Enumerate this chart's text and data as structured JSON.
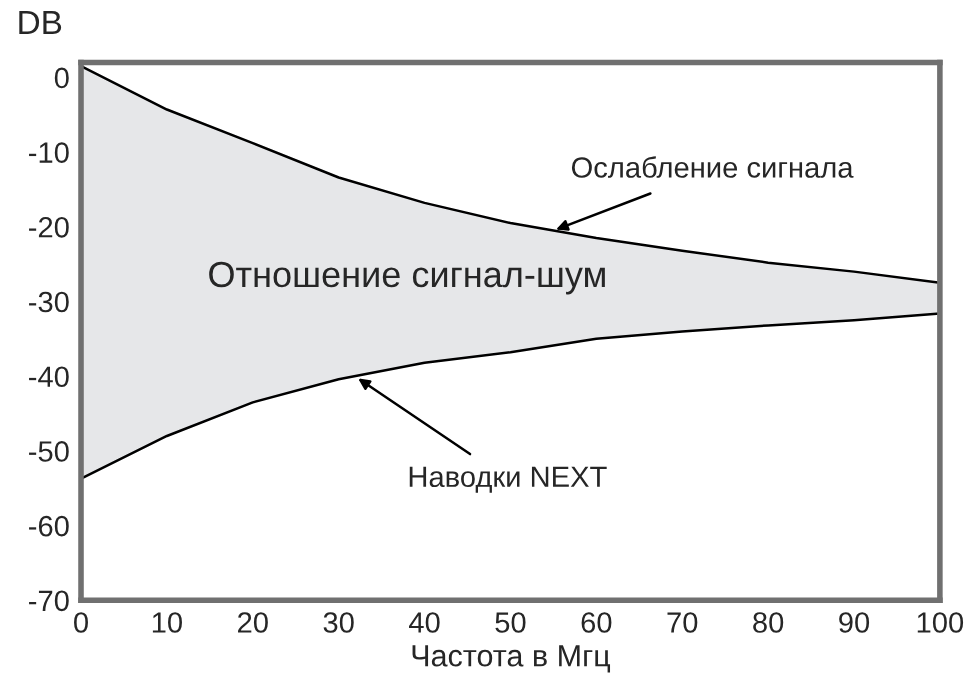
{
  "chart_data": {
    "type": "line",
    "ylabel": "DB",
    "xlabel": "Частота в Мгц",
    "x": [
      0,
      10,
      20,
      30,
      40,
      50,
      60,
      70,
      80,
      90,
      100
    ],
    "series": [
      {
        "color": "#000000",
        "values": [
          1.5,
          -4.3,
          -8.8,
          -13.4,
          -16.8,
          -19.5,
          -21.5,
          -23.2,
          -24.8,
          -26,
          -27.5
        ],
        "lower": [
          -53.7,
          -48,
          -43.5,
          -40.4,
          -38.2,
          -36.8,
          -35,
          -34,
          -33.2,
          -32.5,
          -31.6
        ],
        "upper": [
          1.5,
          -4.3,
          -8.8,
          -13.4,
          -16.8,
          -19.5,
          -21.5,
          -23.2,
          -24.8,
          -26,
          -27.5
        ]
      },
      {
        "color": "#000000",
        "values": [
          -53.7,
          -48,
          -43.5,
          -40.4,
          -38.2,
          -36.8,
          -35,
          -34,
          -33.2,
          -32.5,
          -31.6
        ]
      }
    ],
    "annotations": [
      {
        "text": "Ослабление сигнала",
        "x": 55,
        "y": -20.5
      },
      {
        "text": "Наводки NEXT",
        "x": 32,
        "y": -40.1
      },
      "Отношение сигнал-шум"
    ],
    "xlim": [
      0,
      100
    ],
    "ylim": [
      -70,
      2
    ],
    "xticks": [
      0,
      10,
      20,
      30,
      40,
      50,
      60,
      70,
      80,
      90,
      100
    ],
    "yticks": [
      -70,
      -60,
      -50,
      -40,
      -30,
      -20,
      -10,
      0
    ],
    "grid": false,
    "legend": false,
    "marker": "none",
    "line_style": "solid"
  }
}
